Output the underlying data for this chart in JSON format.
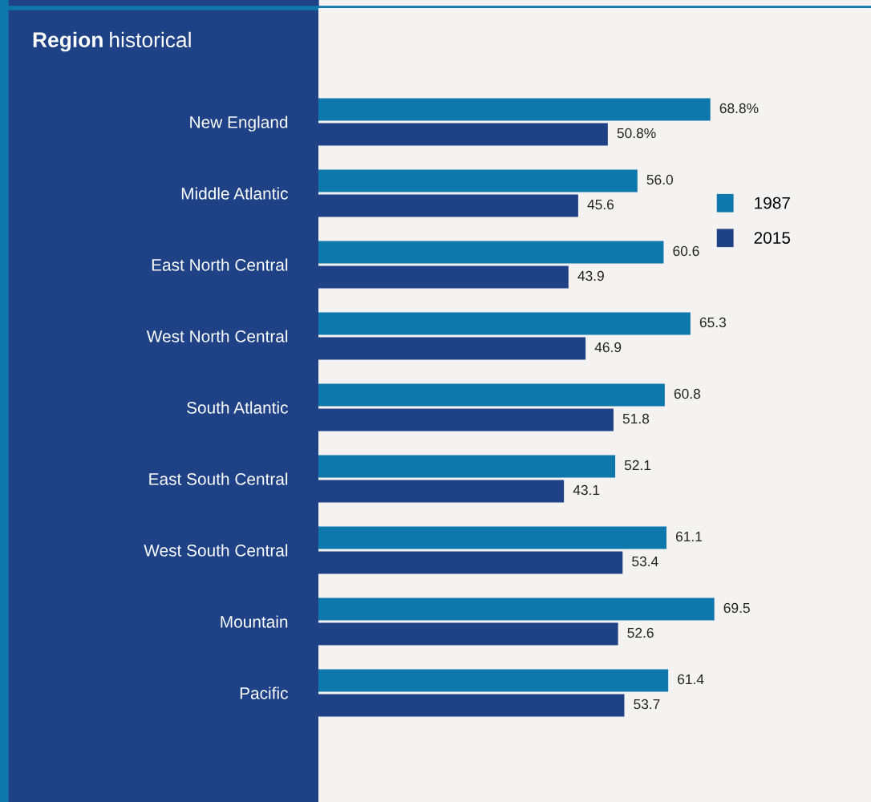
{
  "chart_data": {
    "type": "bar",
    "orientation": "horizontal",
    "title": "Region historical",
    "categories": [
      "New England",
      "Middle Atlantic",
      "East North Central",
      "West North Central",
      "South Atlantic",
      "East South Central",
      "West South Central",
      "Mountain",
      "Pacific"
    ],
    "series": [
      {
        "name": "1987",
        "color": "#0e77ab",
        "values": [
          68.8,
          56.0,
          60.6,
          65.3,
          60.8,
          52.1,
          61.1,
          69.5,
          61.4
        ],
        "value_labels": [
          "68.8%",
          "56.0",
          "60.6",
          "65.3",
          "60.8",
          "52.1",
          "61.1",
          "69.5",
          "61.4"
        ]
      },
      {
        "name": "2015",
        "color": "#1f4287",
        "values": [
          50.8,
          45.6,
          43.9,
          46.9,
          51.8,
          43.1,
          53.4,
          52.6,
          53.7
        ],
        "value_labels": [
          "50.8%",
          "45.6",
          "43.9",
          "46.9",
          "51.8",
          "43.1",
          "53.4",
          "52.6",
          "53.7"
        ]
      }
    ],
    "xlim": [
      0,
      97
    ],
    "tick_labels": "y",
    "grid": false,
    "legend": "right"
  }
}
